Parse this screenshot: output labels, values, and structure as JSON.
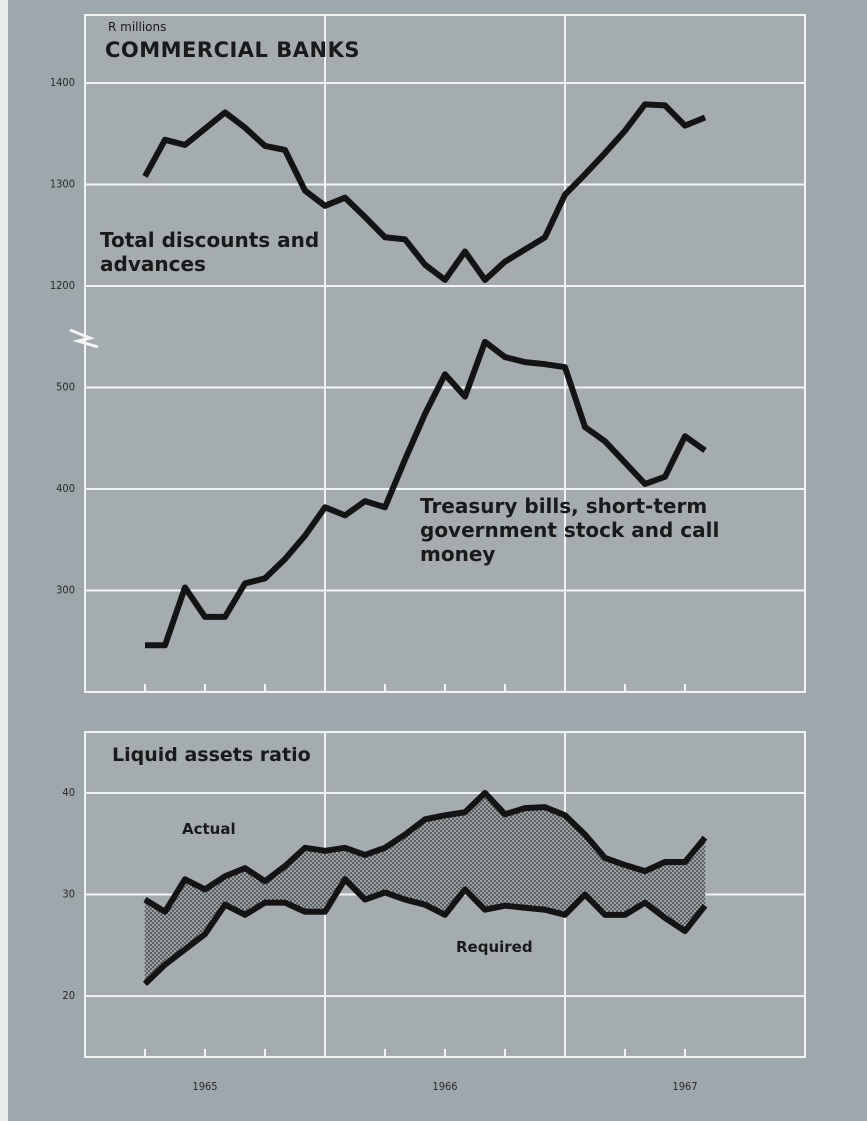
{
  "chart_data": [
    {
      "type": "line",
      "subtitle": "R millions",
      "title": "COMMERCIAL BANKS",
      "ylim": [
        200,
        867
      ],
      "yticks": [
        300,
        400,
        500
      ],
      "y2lim": [
        800,
        1467
      ],
      "y2ticks": [
        1200,
        1300,
        1400
      ],
      "grid": true,
      "series": [
        {
          "name": "Total discounts and advances",
          "color": "#141414",
          "axis": "y2",
          "values": [
            1308,
            1344,
            1339,
            1355,
            1371,
            1356,
            1338,
            1334,
            1294,
            1279,
            1287,
            1268,
            1248,
            1246,
            1221,
            1206,
            1234,
            1206,
            1224,
            1236,
            1248,
            1290,
            1310,
            1331,
            1353,
            1379,
            1378,
            1358,
            1366
          ]
        },
        {
          "name": "Treasury bills, short-term government stock and call money",
          "color": "#141414",
          "values": [
            246,
            246,
            303,
            274,
            274,
            307,
            312,
            331,
            354,
            382,
            374,
            388,
            382,
            429,
            474,
            513,
            491,
            545,
            530,
            525,
            523,
            520,
            461,
            447,
            426,
            405,
            412,
            452,
            438
          ]
        }
      ]
    },
    {
      "type": "band",
      "title": "Liquid assets ratio",
      "categories": [
        null,
        null,
        null,
        "1965",
        null,
        null,
        null,
        null,
        null,
        null,
        null,
        null,
        null,
        null,
        null,
        "1966",
        null,
        null,
        null,
        null,
        null,
        null,
        null,
        null,
        null,
        null,
        null,
        "1967",
        null
      ],
      "ylim": [
        14,
        46
      ],
      "yticks": [
        20,
        30,
        40
      ],
      "grid": true,
      "series": [
        {
          "name": "Actual",
          "color": "#141414",
          "values": [
            29.5,
            28.3,
            31.5,
            30.5,
            31.8,
            32.6,
            31.3,
            32.8,
            34.6,
            34.3,
            34.6,
            33.9,
            34.6,
            35.9,
            37.4,
            37.8,
            38.1,
            40.0,
            37.9,
            38.5,
            38.6,
            37.8,
            35.9,
            33.6,
            32.9,
            32.3,
            33.2,
            33.2,
            35.6
          ]
        },
        {
          "name": "Required",
          "color": "#141414",
          "values": [
            21.2,
            23.1,
            24.6,
            26.1,
            29.0,
            28.0,
            29.2,
            29.2,
            28.3,
            28.3,
            31.5,
            29.5,
            30.2,
            29.5,
            29.0,
            28.0,
            30.5,
            28.5,
            28.9,
            28.7,
            28.5,
            28.0,
            30.0,
            28.0,
            28.0,
            29.2,
            27.7,
            26.4,
            28.9
          ]
        }
      ]
    }
  ]
}
